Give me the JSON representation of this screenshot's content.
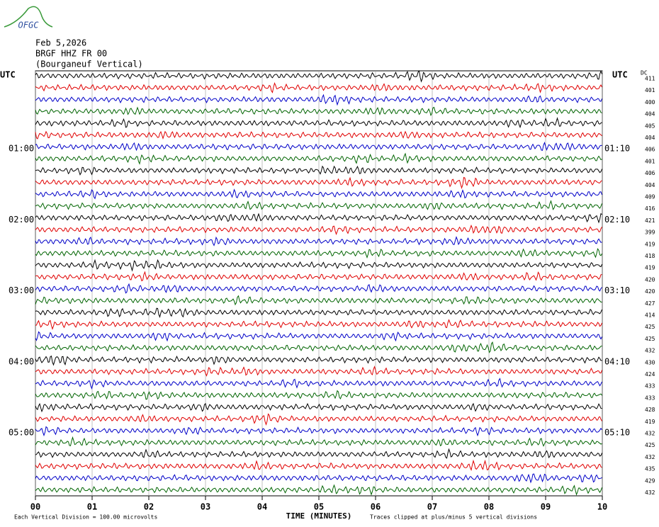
{
  "chart_data": {
    "type": "helicorder",
    "logo": "OFGC",
    "title": "Feb 5,2026",
    "subtitle": "BRGF HHZ FR 00",
    "station": "(Bourganeuf Vertical)",
    "left_header": "UTC",
    "right_header": "UTC",
    "dc_header": "DC",
    "left_labels": [
      null,
      null,
      null,
      null,
      null,
      null,
      "01:00",
      null,
      null,
      null,
      null,
      null,
      "02:00",
      null,
      null,
      null,
      null,
      null,
      "03:00",
      null,
      null,
      null,
      null,
      null,
      "04:00",
      null,
      null,
      null,
      null,
      null,
      "05:00",
      null,
      null,
      null,
      null,
      null
    ],
    "right_labels": [
      null,
      null,
      null,
      null,
      null,
      null,
      "01:10",
      null,
      null,
      null,
      null,
      null,
      "02:10",
      null,
      null,
      null,
      null,
      null,
      "03:10",
      null,
      null,
      null,
      null,
      null,
      "04:10",
      null,
      null,
      null,
      null,
      null,
      "05:10",
      null,
      null,
      null,
      null,
      null
    ],
    "dc_values": [
      411,
      401,
      400,
      404,
      405,
      404,
      406,
      401,
      406,
      404,
      409,
      416,
      421,
      399,
      419,
      418,
      419,
      420,
      420,
      427,
      414,
      425,
      425,
      432,
      430,
      424,
      433,
      433,
      428,
      419,
      432,
      425,
      432,
      435,
      429,
      432
    ],
    "colors": [
      "#000000",
      "#e00000",
      "#0000c8",
      "#006400"
    ],
    "xlabel": "TIME (MINUTES)",
    "xlim": [
      0,
      10
    ],
    "xticks": [
      {
        "value": 0,
        "label": "00"
      },
      {
        "value": 1,
        "label": "01"
      },
      {
        "value": 2,
        "label": "02"
      },
      {
        "value": 3,
        "label": "03"
      },
      {
        "value": 4,
        "label": "04"
      },
      {
        "value": 5,
        "label": "05"
      },
      {
        "value": 6,
        "label": "06"
      },
      {
        "value": 7,
        "label": "07"
      },
      {
        "value": 8,
        "label": "08"
      },
      {
        "value": 9,
        "label": "09"
      },
      10
    ],
    "grid": true,
    "note_left": "Each Vertical Division =  100.00 microvolts",
    "note_right": "Traces clipped at plus/minus 5 vertical divisions"
  }
}
